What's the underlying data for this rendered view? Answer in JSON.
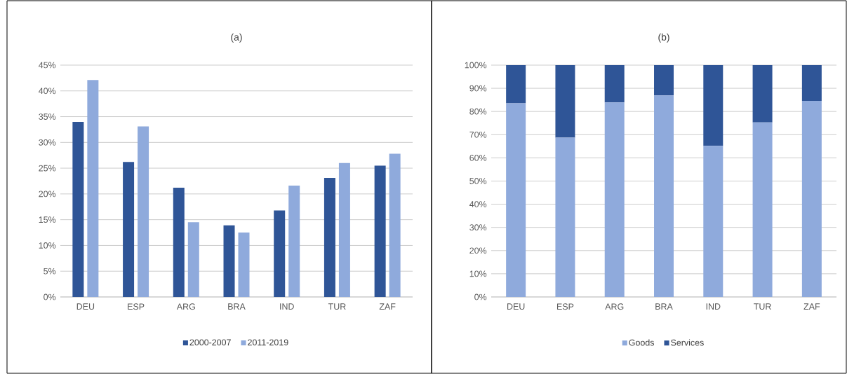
{
  "chart_data": [
    {
      "type": "bar",
      "title": "(a)",
      "categories": [
        "DEU",
        "ESP",
        "ARG",
        "BRA",
        "IND",
        "TUR",
        "ZAF"
      ],
      "series": [
        {
          "name": "2000-2007",
          "color": "#2f5597",
          "values": [
            34.0,
            26.2,
            21.2,
            13.9,
            16.8,
            23.1,
            25.5
          ]
        },
        {
          "name": "2011-2019",
          "color": "#8faadc",
          "values": [
            42.1,
            33.1,
            14.5,
            12.5,
            21.6,
            26.0,
            27.8
          ]
        }
      ],
      "ylim": [
        0,
        45
      ],
      "yticks": [
        {
          "value": 0,
          "label": "0%"
        },
        {
          "value": 5,
          "label": "5%"
        },
        {
          "value": 10,
          "label": "10%"
        },
        {
          "value": 15,
          "label": "15%"
        },
        {
          "value": 20,
          "label": "20%"
        },
        {
          "value": 25,
          "label": "25%"
        },
        {
          "value": 30,
          "label": "30%"
        },
        {
          "value": 35,
          "label": "35%"
        },
        {
          "value": 40,
          "label": "40%"
        },
        {
          "value": 45,
          "label": "45%"
        }
      ],
      "grid": "y",
      "legend": "bottom"
    },
    {
      "type": "bar",
      "title": "(b)",
      "stacked": true,
      "categories": [
        "DEU",
        "ESP",
        "ARG",
        "BRA",
        "IND",
        "TUR",
        "ZAF"
      ],
      "series": [
        {
          "name": "Goods",
          "color": "#8faadc",
          "values": [
            83.5,
            68.7,
            83.9,
            86.9,
            65.2,
            75.3,
            84.6
          ]
        },
        {
          "name": "Services",
          "color": "#2f5597",
          "values": [
            16.5,
            31.3,
            16.1,
            13.1,
            34.8,
            24.7,
            15.4
          ]
        }
      ],
      "ylim": [
        0,
        100
      ],
      "yticks": [
        {
          "value": 0,
          "label": "0%"
        },
        {
          "value": 10,
          "label": "10%"
        },
        {
          "value": 20,
          "label": "20%"
        },
        {
          "value": 30,
          "label": "30%"
        },
        {
          "value": 40,
          "label": "40%"
        },
        {
          "value": 50,
          "label": "50%"
        },
        {
          "value": 60,
          "label": "60%"
        },
        {
          "value": 70,
          "label": "70%"
        },
        {
          "value": 80,
          "label": "80%"
        },
        {
          "value": 90,
          "label": "90%"
        },
        {
          "value": 100,
          "label": "100%"
        }
      ],
      "grid": "y",
      "legend": "bottom"
    }
  ]
}
